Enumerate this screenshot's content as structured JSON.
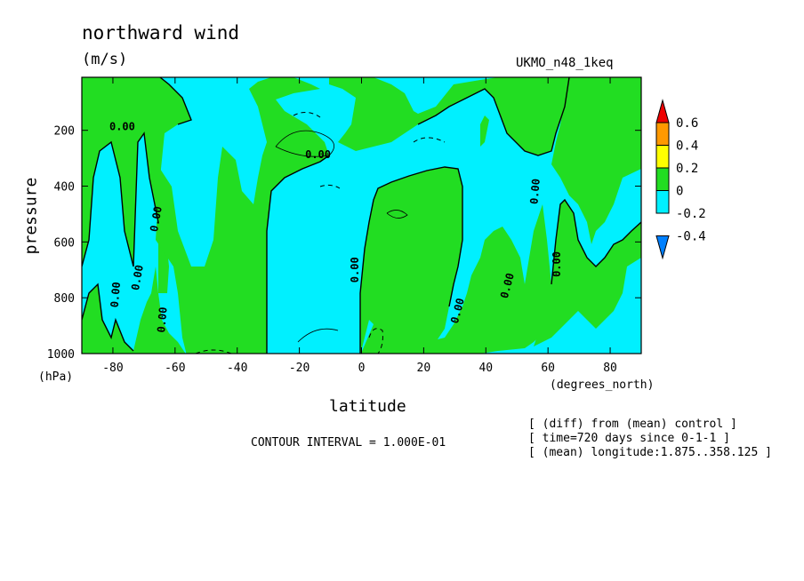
{
  "header": {
    "title": "northward wind",
    "units": "(m/s)",
    "model": "UKMO_n48_1keq"
  },
  "footer": {
    "contour_interval": "CONTOUR INTERVAL = 1.000E-01",
    "info": [
      "[ (diff) from (mean) control ]",
      "[ time=720 days since 0-1-1 ]",
      "[ (mean) longitude:1.875..358.125 ]"
    ]
  },
  "colors": {
    "positive_0_0.2": "#22dd22",
    "negative_-0.2_0": "#00f0ff",
    "legend": [
      "#0080ff",
      "#00f0ff",
      "#22dd22",
      "#ffff00",
      "#ff9900",
      "#ee0000"
    ]
  },
  "chart_data": {
    "type": "heatmap",
    "title": "northward wind",
    "subtitle": "(m/s)",
    "xlabel": "latitude",
    "x_units": "(degrees_north)",
    "ylabel": "pressure",
    "y_units": "(hPa)",
    "xlim": [
      -90,
      90
    ],
    "ylim": [
      1000,
      10
    ],
    "xticks": [
      -80,
      -60,
      -40,
      -20,
      0,
      20,
      40,
      60,
      80
    ],
    "yticks": [
      200,
      400,
      600,
      800,
      1000
    ],
    "y_reversed": true,
    "contour_interval": 0.1,
    "contour_labels": [
      "0.00",
      "0.00",
      "0.00",
      "0.00",
      "0.00",
      "0.00",
      "0.00",
      "0.00",
      "0.00",
      "0.00",
      "0.00",
      "0.00"
    ],
    "colorbar": {
      "levels": [
        "0.6",
        "0.4",
        "0.2",
        "0",
        "-0.2",
        "-0.4"
      ],
      "colors": [
        "#0080ff",
        "#00f0ff",
        "#22dd22",
        "#ffff00",
        "#ff9900",
        "#ee0000"
      ]
    },
    "regions": [
      {
        "sign": "positive",
        "lat_range": [
          -90,
          -78
        ],
        "p_range": [
          200,
          1000
        ]
      },
      {
        "sign": "positive",
        "lat_range": [
          -70,
          -55
        ],
        "p_range": [
          300,
          1000
        ]
      },
      {
        "sign": "positive",
        "lat_range": [
          -55,
          -30
        ],
        "p_range": [
          150,
          1000
        ]
      },
      {
        "sign": "positive",
        "lat_range": [
          -30,
          -15
        ],
        "p_range": [
          850,
          1000
        ]
      },
      {
        "sign": "positive",
        "lat_range": [
          0,
          40
        ],
        "p_range": [
          350,
          1000
        ]
      },
      {
        "sign": "positive",
        "lat_range": [
          45,
          90
        ],
        "p_range": [
          10,
          200
        ]
      },
      {
        "sign": "positive",
        "lat_range": [
          55,
          70
        ],
        "p_range": [
          350,
          900
        ]
      },
      {
        "sign": "negative",
        "lat_range": [
          -10,
          5
        ],
        "p_range": [
          250,
          1000
        ]
      },
      {
        "sign": "negative",
        "lat_range": [
          20,
          60
        ],
        "p_range": [
          10,
          350
        ]
      },
      {
        "sign": "negative",
        "lat_range": [
          70,
          90
        ],
        "p_range": [
          250,
          1000
        ]
      }
    ]
  }
}
